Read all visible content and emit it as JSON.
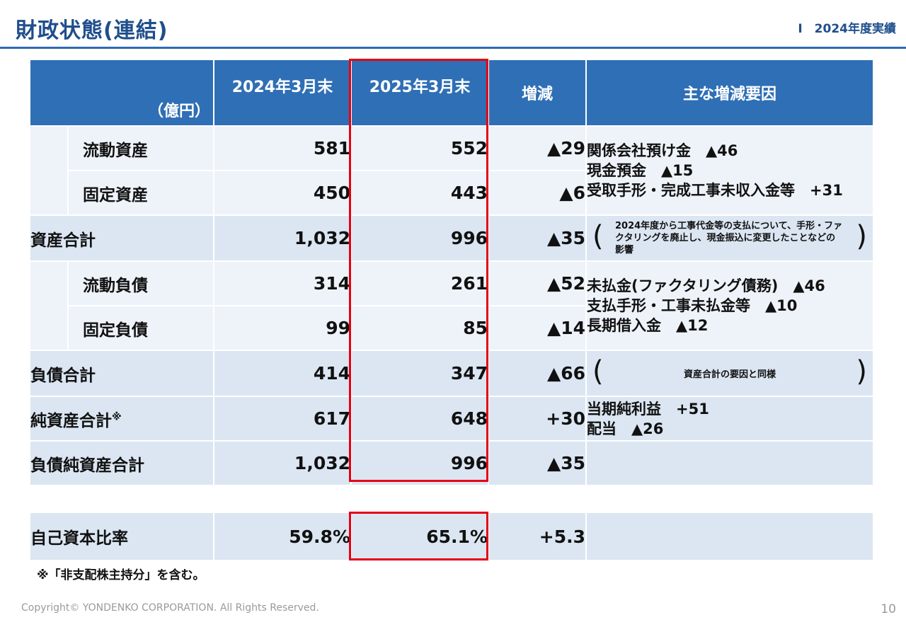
{
  "header": {
    "title": "財政状態(連結)",
    "section": "Ⅰ　2024年度実績"
  },
  "table": {
    "unit_label": "（億円）",
    "col_prev": "2024年3月末",
    "col_curr": "2025年3月末",
    "col_change": "増減",
    "col_reason": "主な増減要因",
    "rows": [
      {
        "label": "流動資産",
        "prev": "581",
        "curr": "552",
        "change": "▲29"
      },
      {
        "label": "固定資産",
        "prev": "450",
        "curr": "443",
        "change": "▲6"
      },
      {
        "label": "資産合計",
        "prev": "1,032",
        "curr": "996",
        "change": "▲35"
      },
      {
        "label": "流動負債",
        "prev": "314",
        "curr": "261",
        "change": "▲52"
      },
      {
        "label": "固定負債",
        "prev": "99",
        "curr": "85",
        "change": "▲14"
      },
      {
        "label": "負債合計",
        "prev": "414",
        "curr": "347",
        "change": "▲66"
      },
      {
        "label": "純資産合計",
        "label_mark": "※",
        "prev": "617",
        "curr": "648",
        "change": "+30"
      },
      {
        "label": "負債純資産合計",
        "prev": "1,032",
        "curr": "996",
        "change": "▲35"
      }
    ],
    "reasons": {
      "assets": [
        "関係会社預け金　▲46",
        "現金預金　▲15",
        "受取手形・完成工事未収入金等　+31"
      ],
      "assets_note": "2024年度から工事代金等の支払について、手形・ファクタリングを廃止し、現金振込に変更したことなどの影響",
      "liabilities": [
        "未払金(ファクタリング債務)　▲46",
        "支払手形・工事未払金等　▲10",
        "長期借入金　▲12"
      ],
      "liabilities_note": "資産合計の要因と同様",
      "net_assets": [
        "当期純利益　+51",
        "配当　▲26"
      ]
    }
  },
  "equity_ratio": {
    "label": "自己資本比率",
    "prev": "59.8%",
    "curr": "65.1%",
    "change": "+5.3"
  },
  "footnote": "※「非支配株主持分」を含む。",
  "footer": {
    "copyright": "Copyright© YONDENKO CORPORATION. All Rights Reserved.",
    "page": "10"
  },
  "colors": {
    "header_blue": "#2f6fb5",
    "title_blue": "#1f4e8c",
    "highlight_red": "#e60012",
    "row_light": "#eef3f9",
    "row_dark": "#dbe6f2"
  }
}
